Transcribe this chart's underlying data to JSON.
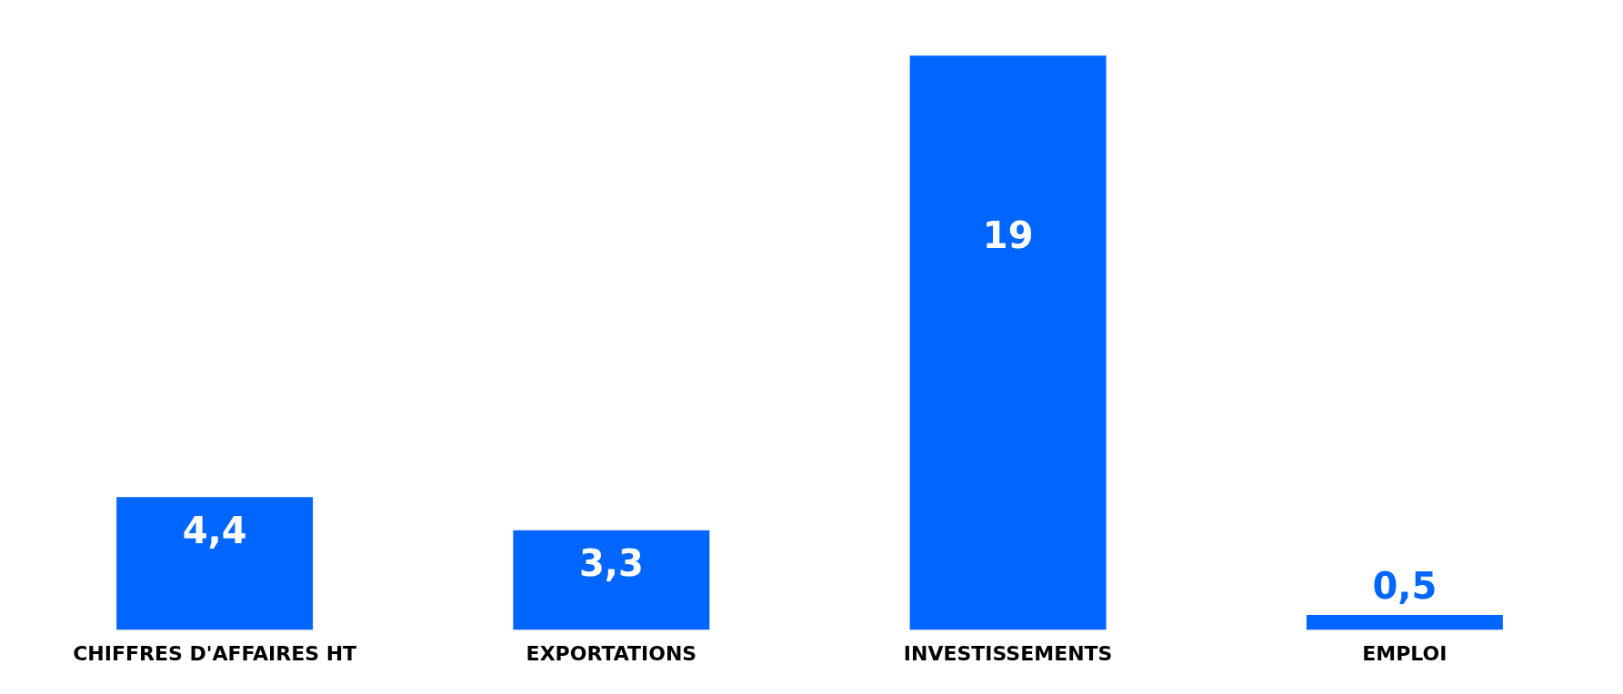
{
  "chart_data": {
    "type": "bar",
    "categories": [
      "CHIFFRES D'AFFAIRES HT",
      "EXPORTATIONS",
      "INVESTISSEMENTS",
      "EMPLOI"
    ],
    "values": [
      4.4,
      3.3,
      19,
      0.5
    ],
    "value_labels": [
      "4,4",
      "3,3",
      "19",
      "0,5"
    ],
    "color": "#0066ff",
    "grid": false,
    "legend": false
  }
}
